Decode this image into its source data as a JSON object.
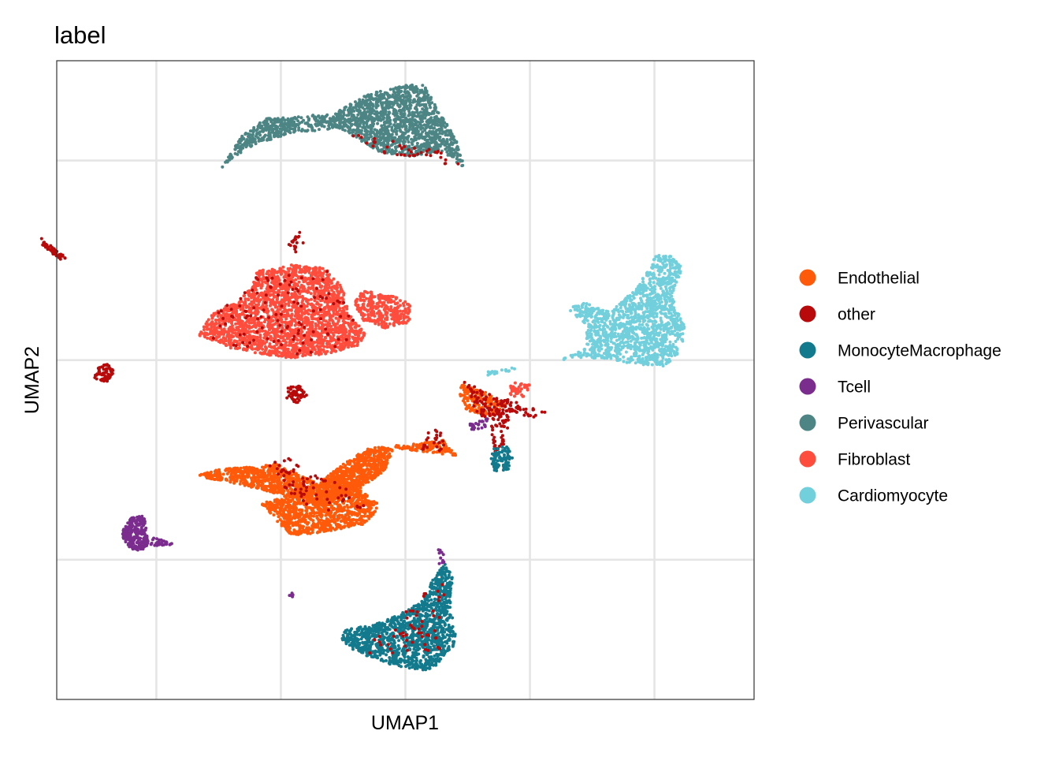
{
  "chart_data": {
    "type": "scatter",
    "title": "label",
    "xlabel": "UMAP1",
    "ylabel": "UMAP2",
    "xlim": [
      -12,
      16
    ],
    "ylim": [
      -17,
      15
    ],
    "x_grid": [
      -8,
      -3,
      2,
      7,
      12
    ],
    "y_grid": [
      10,
      0,
      -10
    ],
    "grid": true,
    "tick_labels_shown": false,
    "legend_position": "right",
    "legend": [
      {
        "name": "Endothelial",
        "color": "#FF5A0A"
      },
      {
        "name": "other",
        "color": "#B80A0A"
      },
      {
        "name": "MonocyteMacrophage",
        "color": "#127A8C"
      },
      {
        "name": "Tcell",
        "color": "#7B2D8E"
      },
      {
        "name": "Perivascular",
        "color": "#4D8585"
      },
      {
        "name": "Fibroblast",
        "color": "#FF4D3D"
      },
      {
        "name": "Cardiomyocyte",
        "color": "#72CFDC"
      }
    ],
    "clusters": [
      {
        "series": "Perivascular",
        "polygon": [
          [
            2.0,
            13.8
          ],
          [
            2.8,
            13.8
          ],
          [
            3.3,
            12.5
          ],
          [
            4.0,
            11.2
          ],
          [
            4.4,
            9.6
          ],
          [
            3.4,
            10.5
          ],
          [
            2.2,
            10.2
          ],
          [
            1.0,
            10.4
          ],
          [
            -0.6,
            11.6
          ],
          [
            -2.6,
            11.4
          ],
          [
            -4.4,
            10.6
          ],
          [
            -5.4,
            9.6
          ],
          [
            -4.6,
            11.2
          ],
          [
            -3.6,
            12.1
          ],
          [
            -2.2,
            12.2
          ],
          [
            -0.8,
            12.4
          ],
          [
            0.3,
            13.2
          ],
          [
            1.2,
            13.6
          ]
        ],
        "count": 1800
      },
      {
        "series": "other",
        "polygon": [
          [
            -0.6,
            11.6
          ],
          [
            3.4,
            10.5
          ],
          [
            4.4,
            9.6
          ],
          [
            2.2,
            10.2
          ],
          [
            1.0,
            10.4
          ]
        ],
        "count": 40
      },
      {
        "series": "Fibroblast",
        "polygon": [
          [
            -4.1,
            4.4
          ],
          [
            -2.7,
            4.8
          ],
          [
            -1.2,
            4.6
          ],
          [
            -0.5,
            3.6
          ],
          [
            -0.3,
            2.4
          ],
          [
            0.4,
            1.3
          ],
          [
            0.1,
            0.7
          ],
          [
            -1.2,
            0.3
          ],
          [
            -2.6,
            0.1
          ],
          [
            -3.8,
            0.3
          ],
          [
            -5.0,
            0.6
          ],
          [
            -6.4,
            1.3
          ],
          [
            -5.8,
            2.3
          ],
          [
            -4.6,
            3.1
          ],
          [
            -4.2,
            3.6
          ]
        ],
        "count": 2200
      },
      {
        "series": "Fibroblast",
        "polygon": [
          [
            0.3,
            3.5
          ],
          [
            1.6,
            3.2
          ],
          [
            2.2,
            2.8
          ],
          [
            2.2,
            1.9
          ],
          [
            1.2,
            1.6
          ],
          [
            0.3,
            2.0
          ],
          [
            -0.1,
            2.8
          ]
        ],
        "count": 320
      },
      {
        "series": "other",
        "polygon": [
          [
            -4.1,
            4.4
          ],
          [
            -1.2,
            4.6
          ],
          [
            0.4,
            1.3
          ],
          [
            -1.2,
            0.3
          ],
          [
            -3.8,
            0.3
          ],
          [
            -6.4,
            1.3
          ]
        ],
        "count": 110
      },
      {
        "series": "other",
        "polygon": [
          [
            -2.7,
            5.8
          ],
          [
            -2.2,
            6.6
          ],
          [
            -2.0,
            5.6
          ],
          [
            -2.6,
            5.2
          ]
        ],
        "count": 18
      },
      {
        "series": "other",
        "polygon": [
          [
            -12.8,
            6.0
          ],
          [
            -11.9,
            5.0
          ],
          [
            -11.6,
            5.1
          ],
          [
            -12.6,
            6.1
          ]
        ],
        "count": 45
      },
      {
        "series": "other",
        "polygon": [
          [
            -10.3,
            -0.3
          ],
          [
            -9.9,
            -0.1
          ],
          [
            -9.7,
            -0.6
          ],
          [
            -10.0,
            -1.1
          ],
          [
            -10.5,
            -0.9
          ]
        ],
        "count": 70
      },
      {
        "series": "other",
        "polygon": [
          [
            -2.7,
            -1.3
          ],
          [
            -2.3,
            -1.2
          ],
          [
            -1.9,
            -1.8
          ],
          [
            -2.3,
            -2.2
          ],
          [
            -2.8,
            -1.9
          ]
        ],
        "count": 55
      },
      {
        "series": "Cardiomyocyte",
        "polygon": [
          [
            12.1,
            5.3
          ],
          [
            12.8,
            5.2
          ],
          [
            13.1,
            4.6
          ],
          [
            12.7,
            3.2
          ],
          [
            13.2,
            1.7
          ],
          [
            13.1,
            0.4
          ],
          [
            12.4,
            -0.3
          ],
          [
            11.2,
            -0.2
          ],
          [
            9.9,
            0.1
          ],
          [
            9.0,
            0.1
          ],
          [
            8.2,
            0.0
          ],
          [
            9.3,
            0.6
          ],
          [
            9.2,
            1.8
          ],
          [
            8.5,
            2.6
          ],
          [
            9.3,
            2.9
          ],
          [
            10.2,
            2.4
          ],
          [
            11.2,
            3.5
          ],
          [
            11.7,
            4.5
          ]
        ],
        "count": 1400
      },
      {
        "series": "Endothelial",
        "polygon": [
          [
            -6.4,
            -5.8
          ],
          [
            -4.4,
            -6.3
          ],
          [
            -2.8,
            -6.8
          ],
          [
            -1.5,
            -7.2
          ],
          [
            0.0,
            -6.6
          ],
          [
            1.2,
            -5.5
          ],
          [
            1.6,
            -4.2
          ],
          [
            1.8,
            -4.3
          ],
          [
            3.5,
            -4.0
          ],
          [
            4.1,
            -4.8
          ],
          [
            2.8,
            -4.6
          ],
          [
            1.4,
            -4.4
          ],
          [
            0.6,
            -4.3
          ],
          [
            -0.6,
            -5.3
          ],
          [
            -1.5,
            -6.2
          ],
          [
            -3.2,
            -5.2
          ],
          [
            -5.6,
            -5.5
          ]
        ],
        "count": 1500
      },
      {
        "series": "Endothelial",
        "polygon": [
          [
            -2.6,
            -8.8
          ],
          [
            -1.2,
            -8.6
          ],
          [
            0.4,
            -8.2
          ],
          [
            1.0,
            -7.3
          ],
          [
            0.3,
            -6.6
          ],
          [
            -0.6,
            -5.3
          ],
          [
            -1.5,
            -6.2
          ],
          [
            -2.8,
            -6.8
          ],
          [
            -3.8,
            -7.2
          ],
          [
            -3.2,
            -8.0
          ]
        ],
        "count": 1100
      },
      {
        "series": "other",
        "polygon": [
          [
            -3.6,
            -5.0
          ],
          [
            -2.6,
            -4.8
          ],
          [
            -2.0,
            -5.6
          ],
          [
            -0.4,
            -6.2
          ],
          [
            0.4,
            -7.4
          ],
          [
            -1.4,
            -7.6
          ],
          [
            -3.0,
            -6.6
          ]
        ],
        "count": 70
      },
      {
        "series": "other",
        "polygon": [
          [
            2.8,
            -3.6
          ],
          [
            3.4,
            -3.4
          ],
          [
            3.6,
            -4.6
          ],
          [
            2.6,
            -4.5
          ]
        ],
        "count": 25
      },
      {
        "series": "Tcell",
        "polygon": [
          [
            -9.0,
            -7.9
          ],
          [
            -8.5,
            -7.8
          ],
          [
            -8.3,
            -9.2
          ],
          [
            -8.6,
            -9.6
          ],
          [
            -9.2,
            -9.4
          ],
          [
            -9.4,
            -8.6
          ]
        ],
        "count": 260
      },
      {
        "series": "Tcell",
        "polygon": [
          [
            -8.1,
            -8.9
          ],
          [
            -7.3,
            -9.1
          ],
          [
            -7.4,
            -9.3
          ],
          [
            -8.3,
            -9.3
          ]
        ],
        "count": 35
      },
      {
        "series": "Tcell",
        "polygon": [
          [
            -2.7,
            -11.6
          ],
          [
            -2.5,
            -11.6
          ],
          [
            -2.5,
            -11.9
          ],
          [
            -2.7,
            -11.9
          ]
        ],
        "count": 8
      },
      {
        "series": "MonocyteMacrophage",
        "polygon": [
          [
            3.6,
            -10.2
          ],
          [
            3.9,
            -10.9
          ],
          [
            3.8,
            -12.4
          ],
          [
            4.1,
            -14.1
          ],
          [
            3.0,
            -15.6
          ],
          [
            1.5,
            -15.3
          ],
          [
            0.4,
            -14.8
          ],
          [
            -0.6,
            -14.2
          ],
          [
            -0.5,
            -13.5
          ],
          [
            0.8,
            -13.2
          ],
          [
            2.0,
            -12.6
          ],
          [
            2.6,
            -12.1
          ],
          [
            3.2,
            -10.8
          ]
        ],
        "count": 1300
      },
      {
        "series": "other",
        "polygon": [
          [
            3.0,
            -11.4
          ],
          [
            3.6,
            -11.1
          ],
          [
            3.4,
            -14.6
          ],
          [
            1.6,
            -14.9
          ],
          [
            0.2,
            -14.6
          ],
          [
            1.4,
            -13.2
          ]
        ],
        "count": 55
      },
      {
        "series": "Tcell",
        "polygon": [
          [
            3.3,
            -9.4
          ],
          [
            3.6,
            -9.6
          ],
          [
            3.6,
            -10.4
          ],
          [
            3.3,
            -10.2
          ]
        ],
        "count": 10
      },
      {
        "series": "Endothelial",
        "polygon": [
          [
            4.2,
            -1.2
          ],
          [
            5.2,
            -1.6
          ],
          [
            6.1,
            -2.3
          ],
          [
            5.4,
            -2.8
          ],
          [
            4.5,
            -2.6
          ],
          [
            4.2,
            -1.9
          ]
        ],
        "count": 180
      },
      {
        "series": "Fibroblast",
        "polygon": [
          [
            6.2,
            -1.1
          ],
          [
            7.0,
            -1.2
          ],
          [
            6.9,
            -1.8
          ],
          [
            6.2,
            -1.9
          ]
        ],
        "count": 40
      },
      {
        "series": "other",
        "polygon": [
          [
            4.2,
            -0.9
          ],
          [
            5.5,
            -1.8
          ],
          [
            6.2,
            -2.0
          ],
          [
            7.6,
            -2.6
          ],
          [
            7.5,
            -3.0
          ],
          [
            6.2,
            -2.8
          ],
          [
            6.0,
            -4.4
          ],
          [
            5.6,
            -4.6
          ],
          [
            5.4,
            -3.2
          ],
          [
            4.8,
            -2.6
          ],
          [
            4.6,
            -1.6
          ]
        ],
        "count": 170
      },
      {
        "series": "Tcell",
        "polygon": [
          [
            4.6,
            -3.2
          ],
          [
            5.3,
            -2.9
          ],
          [
            5.2,
            -3.4
          ],
          [
            4.6,
            -3.5
          ]
        ],
        "count": 25
      },
      {
        "series": "MonocyteMacrophage",
        "polygon": [
          [
            5.6,
            -4.3
          ],
          [
            6.1,
            -4.3
          ],
          [
            6.3,
            -4.9
          ],
          [
            6.1,
            -5.6
          ],
          [
            5.6,
            -5.6
          ],
          [
            5.4,
            -5.0
          ]
        ],
        "count": 90
      },
      {
        "series": "Cardiomyocyte",
        "polygon": [
          [
            5.2,
            -0.6
          ],
          [
            6.5,
            -0.3
          ],
          [
            6.5,
            -0.5
          ],
          [
            5.2,
            -0.8
          ]
        ],
        "count": 20
      }
    ]
  }
}
